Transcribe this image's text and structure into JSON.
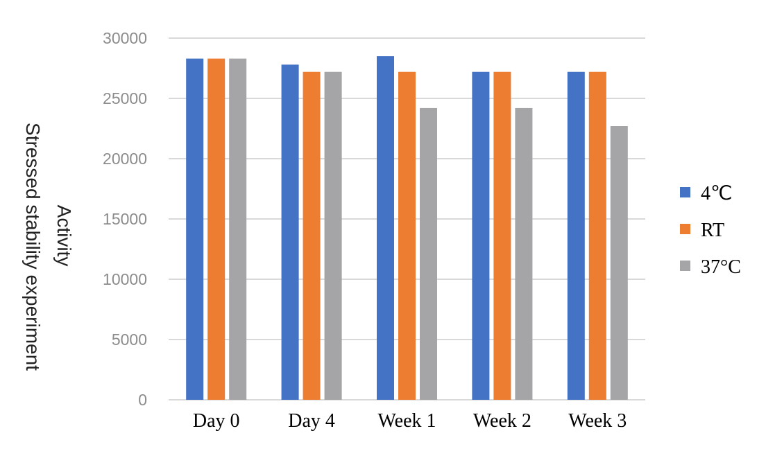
{
  "chart_data": {
    "type": "bar",
    "title": "",
    "xlabel": "",
    "ylabel_lines": [
      "Stressed stability experiment",
      "Activity"
    ],
    "categories": [
      "Day 0",
      "Day 4",
      "Week 1",
      "Week 2",
      "Week 3"
    ],
    "series": [
      {
        "name": "4℃",
        "color": "#4472c4",
        "values": [
          28300,
          27800,
          28500,
          27200,
          27200
        ]
      },
      {
        "name": "RT",
        "color": "#ed7d31",
        "values": [
          28300,
          27200,
          27200,
          27200,
          27200
        ]
      },
      {
        "name": "37°C",
        "color": "#a5a5a7",
        "values": [
          28300,
          27200,
          24200,
          24200,
          22700
        ]
      }
    ],
    "ylim": [
      0,
      30000
    ],
    "yticks": [
      0,
      5000,
      10000,
      15000,
      20000,
      25000,
      30000
    ],
    "grid": true,
    "legend_position": "right"
  }
}
